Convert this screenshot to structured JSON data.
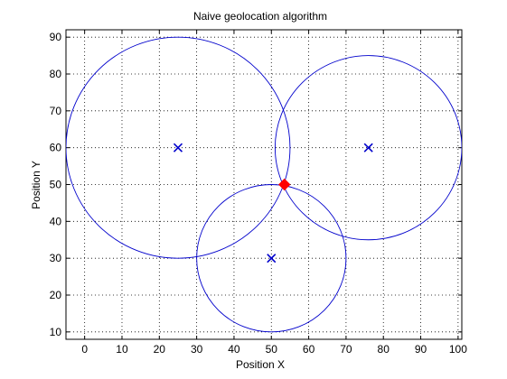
{
  "chart_data": {
    "type": "scatter",
    "title": "Naive geolocation algorithm",
    "xlabel": "Position X",
    "ylabel": "Position Y",
    "xlim": [
      -5,
      101
    ],
    "ylim": [
      8,
      92
    ],
    "xticks": [
      0,
      10,
      20,
      30,
      40,
      50,
      60,
      70,
      80,
      90,
      100
    ],
    "yticks": [
      10,
      20,
      30,
      40,
      50,
      60,
      70,
      80,
      90
    ],
    "grid": "dotted",
    "anchors": [
      {
        "x": 25,
        "y": 60,
        "radius": 30
      },
      {
        "x": 76,
        "y": 60,
        "radius": 25
      },
      {
        "x": 50,
        "y": 30,
        "radius": 20
      }
    ],
    "estimate": {
      "x": 53.5,
      "y": 50
    },
    "colors": {
      "circle": "#0000cc",
      "marker": "#0000cc",
      "estimate": "#ff0000",
      "grid": "#000000",
      "axis": "#000000"
    }
  }
}
